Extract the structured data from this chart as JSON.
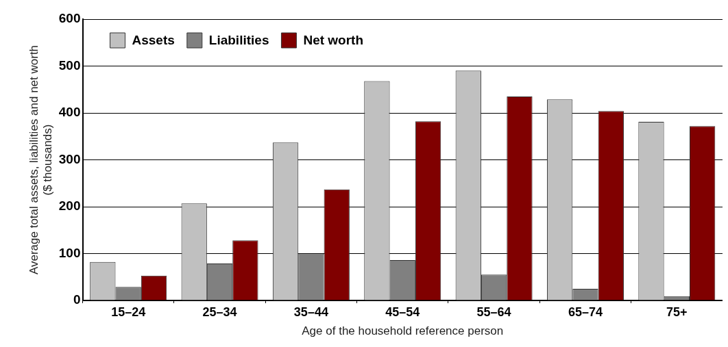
{
  "chart_data": {
    "type": "bar",
    "xlabel": "Age of the household reference person",
    "ylabel": "Average total assets, liabilities and net worth ($ thousands)",
    "categories": [
      "15–24",
      "25–34",
      "35–44",
      "45–54",
      "55–64",
      "65–74",
      "75+"
    ],
    "series": [
      {
        "name": "Assets",
        "color": "#c0c0c0",
        "values": [
          82,
          207,
          337,
          468,
          490,
          429,
          381
        ]
      },
      {
        "name": "Liabilities",
        "color": "#808080",
        "values": [
          29,
          79,
          100,
          86,
          55,
          25,
          9
        ]
      },
      {
        "name": "Net worth",
        "color": "#800000",
        "values": [
          53,
          128,
          237,
          382,
          435,
          404,
          372
        ]
      }
    ],
    "ylim": [
      0,
      600
    ],
    "yticks": [
      0,
      100,
      200,
      300,
      400,
      500,
      600
    ],
    "grid": "y",
    "legend": "top left"
  }
}
